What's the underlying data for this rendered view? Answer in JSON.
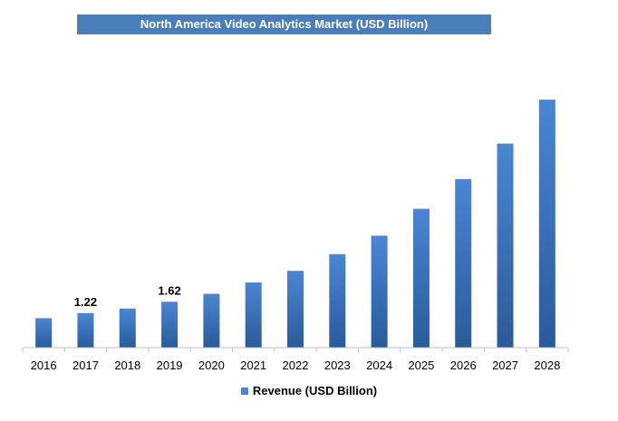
{
  "chart_data": {
    "type": "bar",
    "title": "North America Video Analytics Market (USD Billion)",
    "categories": [
      "2016",
      "2017",
      "2018",
      "2019",
      "2020",
      "2021",
      "2022",
      "2023",
      "2024",
      "2025",
      "2026",
      "2027",
      "2028"
    ],
    "series": [
      {
        "name": "Revenue (USD Billion)",
        "values": [
          1.04,
          1.22,
          1.38,
          1.62,
          1.9,
          2.3,
          2.71,
          3.3,
          3.95,
          4.9,
          5.95,
          7.2,
          8.75
        ],
        "data_labels": [
          "",
          "1.22",
          "",
          "1.62",
          "",
          "",
          "",
          "",
          "",
          "",
          "",
          "",
          ""
        ]
      }
    ],
    "ylim": [
      0,
      9.2
    ],
    "grid": false,
    "legend_position": "bottom",
    "colors": {
      "bar_top": "#4a86d4",
      "bar_bottom": "#2a5a9a",
      "title_bg": "#4a7ebb"
    }
  }
}
